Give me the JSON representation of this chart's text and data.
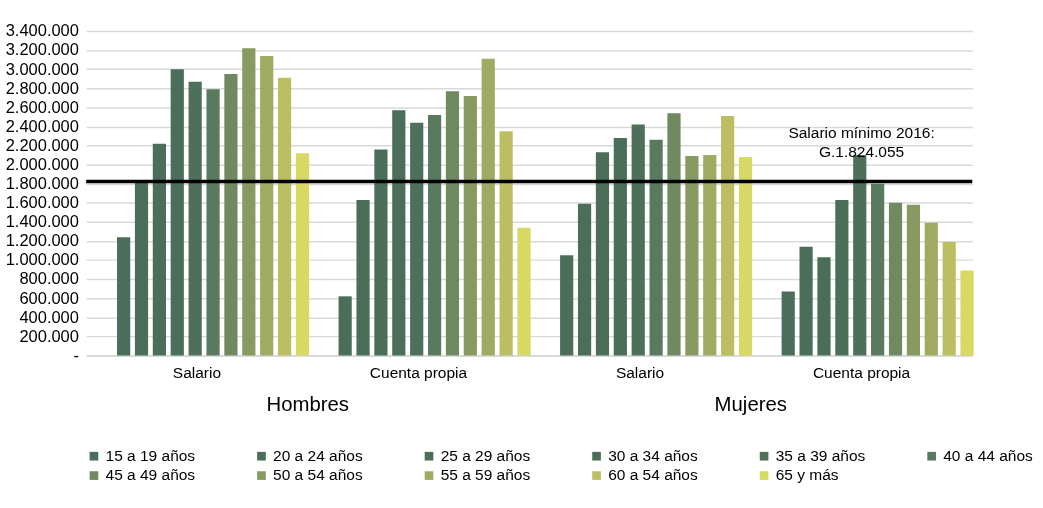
{
  "chart_data": {
    "type": "bar",
    "categories": [
      "Salario",
      "Cuenta propia",
      "Salario",
      "Cuenta propia"
    ],
    "annotations": [
      "Hombres",
      "Mujeres"
    ],
    "series": [
      {
        "name": "15 a 19 años",
        "color": "#4b6e5a",
        "values": [
          1240000,
          620000,
          1050000,
          670000
        ]
      },
      {
        "name": "20 a 24 años",
        "color": "#4b6e5a",
        "values": [
          1830000,
          1630000,
          1590000,
          1140000
        ]
      },
      {
        "name": "25 a 29 años",
        "color": "#4b6e5a",
        "values": [
          2220000,
          2160000,
          2130000,
          1030000
        ]
      },
      {
        "name": "30 a 34 años",
        "color": "#4b6e5a",
        "values": [
          3000000,
          2570000,
          2280000,
          1630000
        ]
      },
      {
        "name": "35 a 39 años",
        "color": "#4e705b",
        "values": [
          2870000,
          2440000,
          2420000,
          2100000
        ]
      },
      {
        "name": "40 a 44 años",
        "color": "#5a7a5f",
        "values": [
          2790000,
          2520000,
          2260000,
          1800000
        ]
      },
      {
        "name": "45 a 49 años",
        "color": "#6f8960",
        "values": [
          2950000,
          2770000,
          2540000,
          1600000
        ]
      },
      {
        "name": "50 a 54 años",
        "color": "#879a62",
        "values": [
          3220000,
          2720000,
          2090000,
          1580000
        ]
      },
      {
        "name": "55 a 59 años",
        "color": "#a1aa63",
        "values": [
          3140000,
          3110000,
          2100000,
          1390000
        ]
      },
      {
        "name": "60 a 54 años",
        "color": "#bcbe62",
        "values": [
          2910000,
          2350000,
          2510000,
          1190000
        ]
      },
      {
        "name": "65 y más",
        "color": "#d8d865",
        "values": [
          2120000,
          1340000,
          2080000,
          890000
        ]
      }
    ],
    "ylim": [
      0,
      3400000
    ],
    "yticks": [
      {
        "value": 0,
        "label": "-"
      },
      {
        "value": 200000,
        "label": "200.000"
      },
      {
        "value": 400000,
        "label": "400.000"
      },
      {
        "value": 600000,
        "label": "600.000"
      },
      {
        "value": 800000,
        "label": "800.000"
      },
      {
        "value": 1000000,
        "label": "1.000.000"
      },
      {
        "value": 1200000,
        "label": "1.200.000"
      },
      {
        "value": 1400000,
        "label": "1.400.000"
      },
      {
        "value": 1600000,
        "label": "1.600.000"
      },
      {
        "value": 1800000,
        "label": "1.800.000"
      },
      {
        "value": 2000000,
        "label": "2.000.000"
      },
      {
        "value": 2200000,
        "label": "2.200.000"
      },
      {
        "value": 2400000,
        "label": "2.400.000"
      },
      {
        "value": 2600000,
        "label": "2.600.000"
      },
      {
        "value": 2800000,
        "label": "2.800.000"
      },
      {
        "value": 3000000,
        "label": "3.000.000"
      },
      {
        "value": 3200000,
        "label": "3.200.000"
      },
      {
        "value": 3400000,
        "label": "3.400.000"
      }
    ],
    "ref_lines": [
      {
        "axis": "y",
        "value": 1824055,
        "label": "Salario mínimo 2016:\nG.1.824.055",
        "color": "#000000"
      }
    ],
    "grid": "y",
    "legend": "bottom"
  }
}
